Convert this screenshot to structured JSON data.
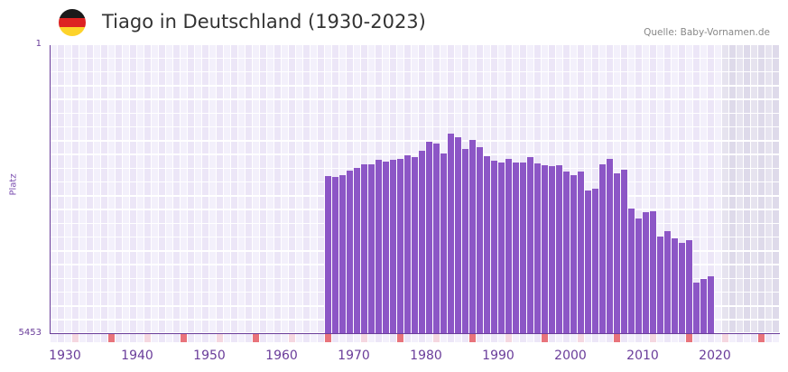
{
  "header": {
    "title": "Tiago in Deutschland (1930-2023)",
    "source": "Quelle: Baby-Vornamen.de",
    "flag_colors": [
      "#1a1a1a",
      "#dd2222",
      "#fdd32a"
    ]
  },
  "colors": {
    "bar": "#8c56c6",
    "axis": "#6a3d9a",
    "grid_bg_a": "#f3f0fb",
    "grid_bg_b": "#ece6f7",
    "future_bg_a": "#e6e3ef",
    "future_bg_b": "#dedaea",
    "decade_tick": "#e8737b",
    "half_decade_tick": "#f5d7e0"
  },
  "axis": {
    "y_top_label": "1",
    "y_bottom_label": "5453",
    "y_title": "Platz"
  },
  "chart_data": {
    "type": "bar",
    "title": "Tiago in Deutschland (1930-2023)",
    "xlabel": "",
    "ylabel": "Platz",
    "ylim": [
      5453,
      1
    ],
    "y_inverted": true,
    "x_range": [
      1930,
      2030
    ],
    "xticks": [
      "1930",
      "1940",
      "1950",
      "1960",
      "1970",
      "1980",
      "1990",
      "2000",
      "2010",
      "2020"
    ],
    "grid": true,
    "legend": null,
    "x": [
      1968,
      1969,
      1970,
      1971,
      1972,
      1973,
      1974,
      1975,
      1976,
      1977,
      1978,
      1979,
      1980,
      1981,
      1982,
      1983,
      1984,
      1985,
      1986,
      1987,
      1988,
      1989,
      1990,
      1991,
      1992,
      1993,
      1994,
      1995,
      1996,
      1997,
      1998,
      1999,
      2000,
      2001,
      2002,
      2003,
      2004,
      2005,
      2006,
      2007,
      2008,
      2009,
      2010,
      2011,
      2012,
      2013,
      2014,
      2015,
      2016,
      2017,
      2018,
      2019,
      2020,
      2021
    ],
    "values": [
      2476,
      2493,
      2459,
      2374,
      2322,
      2254,
      2254,
      2169,
      2203,
      2169,
      2152,
      2084,
      2118,
      1998,
      1828,
      1862,
      2050,
      1675,
      1743,
      1964,
      1794,
      1930,
      2101,
      2186,
      2220,
      2152,
      2220,
      2220,
      2118,
      2237,
      2271,
      2288,
      2271,
      2391,
      2459,
      2391,
      2749,
      2715,
      2254,
      2152,
      2425,
      2357,
      3091,
      3279,
      3159,
      3142,
      3620,
      3517,
      3654,
      3739,
      3688,
      4474,
      4422,
      4371
    ]
  }
}
